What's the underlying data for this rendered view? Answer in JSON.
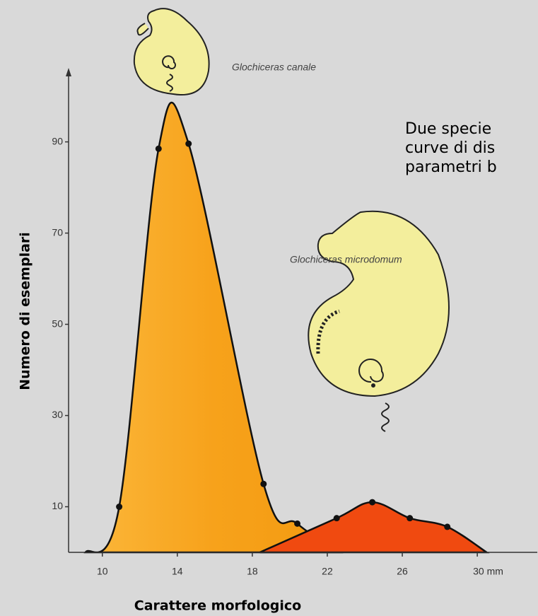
{
  "chart_data": {
    "type": "area",
    "annotation": [
      "Due specie",
      "curve di dis",
      "parametri b"
    ],
    "xlabel": "Carattere morfologico",
    "ylabel": "Numero di esemplari",
    "xlim": [
      8.2,
      33.2
    ],
    "ylim": [
      0,
      105.6
    ],
    "xticks": [
      10,
      14,
      18,
      22,
      26,
      {
        "value": 30,
        "label": "30 mm"
      }
    ],
    "yticks": [
      10,
      30,
      50,
      70,
      90
    ],
    "series": [
      {
        "name": "Glochiceras canale",
        "color": "#f7a21b",
        "x": [
          9.1,
          10.9,
          13.0,
          14.6,
          18.6,
          20.4,
          22.7
        ],
        "values": [
          0,
          10,
          88.5,
          89.6,
          15,
          6.3,
          0
        ]
      },
      {
        "name": "Glochiceras microdomum",
        "color": "#f04a10",
        "x": [
          18.4,
          22.5,
          24.4,
          26.4,
          28.4,
          30.5
        ],
        "values": [
          0,
          7.5,
          11,
          7.5,
          5.6,
          0
        ]
      }
    ]
  }
}
